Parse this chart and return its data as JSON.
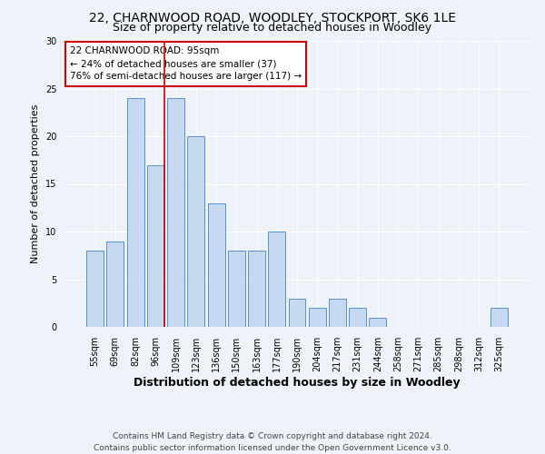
{
  "title1": "22, CHARNWOOD ROAD, WOODLEY, STOCKPORT, SK6 1LE",
  "title2": "Size of property relative to detached houses in Woodley",
  "xlabel": "Distribution of detached houses by size in Woodley",
  "ylabel": "Number of detached properties",
  "categories": [
    "55sqm",
    "69sqm",
    "82sqm",
    "96sqm",
    "109sqm",
    "123sqm",
    "136sqm",
    "150sqm",
    "163sqm",
    "177sqm",
    "190sqm",
    "204sqm",
    "217sqm",
    "231sqm",
    "244sqm",
    "258sqm",
    "271sqm",
    "285sqm",
    "298sqm",
    "312sqm",
    "325sqm"
  ],
  "values": [
    8,
    9,
    24,
    17,
    24,
    20,
    13,
    8,
    8,
    10,
    3,
    2,
    3,
    2,
    1,
    0,
    0,
    0,
    0,
    0,
    2
  ],
  "bar_color": "#c6d9f0",
  "bar_edge_color": "#5b8fc9",
  "vline_index": 3,
  "vline_color": "#cc0000",
  "annotation_line1": "22 CHARNWOOD ROAD: 95sqm",
  "annotation_line2": "← 24% of detached houses are smaller (37)",
  "annotation_line3": "76% of semi-detached houses are larger (117) →",
  "annotation_box_color": "#ffffff",
  "annotation_box_edge_color": "#cc0000",
  "footer1": "Contains HM Land Registry data © Crown copyright and database right 2024.",
  "footer2": "Contains public sector information licensed under the Open Government Licence v3.0.",
  "ylim": [
    0,
    30
  ],
  "yticks": [
    0,
    5,
    10,
    15,
    20,
    25,
    30
  ],
  "title_fontsize": 10,
  "subtitle_fontsize": 9,
  "xlabel_fontsize": 9,
  "ylabel_fontsize": 8,
  "tick_fontsize": 7,
  "annotation_fontsize": 7.5,
  "footer_fontsize": 6.5,
  "background_color": "#eef2f9"
}
